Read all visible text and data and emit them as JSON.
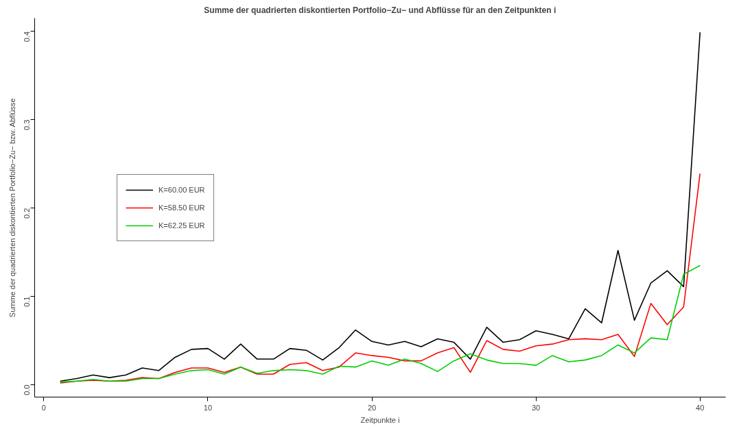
{
  "chart_data": {
    "type": "line",
    "title": "Summe der quadrierten diskontierten Portfolio−Zu− und Abflüsse für an den Zeitpunkten i",
    "xlabel": "Zeitpunkte i",
    "ylabel": "Summe der quadrierten diskontierten Portfolio−Zu− bzw. Abflüsse",
    "x": [
      1,
      2,
      3,
      4,
      5,
      6,
      7,
      8,
      9,
      10,
      11,
      12,
      13,
      14,
      15,
      16,
      17,
      18,
      19,
      20,
      21,
      22,
      23,
      24,
      25,
      26,
      27,
      28,
      29,
      30,
      31,
      32,
      33,
      34,
      35,
      36,
      37,
      38,
      39,
      40
    ],
    "series": [
      {
        "name": "K=60.00 EUR",
        "color": "#000000",
        "values": [
          0.004,
          0.007,
          0.011,
          0.008,
          0.011,
          0.019,
          0.016,
          0.031,
          0.04,
          0.041,
          0.029,
          0.046,
          0.029,
          0.029,
          0.041,
          0.039,
          0.028,
          0.042,
          0.062,
          0.049,
          0.045,
          0.049,
          0.043,
          0.052,
          0.048,
          0.029,
          0.065,
          0.048,
          0.051,
          0.061,
          0.057,
          0.052,
          0.086,
          0.07,
          0.152,
          0.073,
          0.115,
          0.129,
          0.111,
          0.399
        ]
      },
      {
        "name": "K=58.50 EUR",
        "color": "#ff0000",
        "values": [
          0.002,
          0.004,
          0.005,
          0.004,
          0.005,
          0.008,
          0.007,
          0.014,
          0.019,
          0.019,
          0.014,
          0.02,
          0.012,
          0.012,
          0.023,
          0.025,
          0.016,
          0.02,
          0.036,
          0.033,
          0.031,
          0.027,
          0.027,
          0.036,
          0.042,
          0.014,
          0.05,
          0.04,
          0.038,
          0.044,
          0.046,
          0.051,
          0.052,
          0.051,
          0.057,
          0.032,
          0.092,
          0.068,
          0.088,
          0.239
        ]
      },
      {
        "name": "K=62.25 EUR",
        "color": "#00cd00",
        "values": [
          0.003,
          0.004,
          0.006,
          0.004,
          0.004,
          0.007,
          0.007,
          0.012,
          0.016,
          0.017,
          0.012,
          0.02,
          0.013,
          0.016,
          0.017,
          0.016,
          0.012,
          0.021,
          0.02,
          0.027,
          0.022,
          0.029,
          0.024,
          0.015,
          0.027,
          0.035,
          0.028,
          0.024,
          0.024,
          0.022,
          0.033,
          0.026,
          0.028,
          0.033,
          0.045,
          0.036,
          0.053,
          0.051,
          0.125,
          0.135
        ]
      }
    ],
    "xlim": [
      -0.56,
      41.56
    ],
    "ylim": [
      -0.014,
      0.415
    ],
    "xticks": [
      0,
      10,
      20,
      30,
      40
    ],
    "yticks": [
      {
        "value": 0,
        "label": "0.0"
      },
      0.1,
      0.2,
      0.3,
      0.4
    ],
    "grid": false,
    "legend": "center left",
    "line_style": "solid",
    "marker": "none"
  }
}
